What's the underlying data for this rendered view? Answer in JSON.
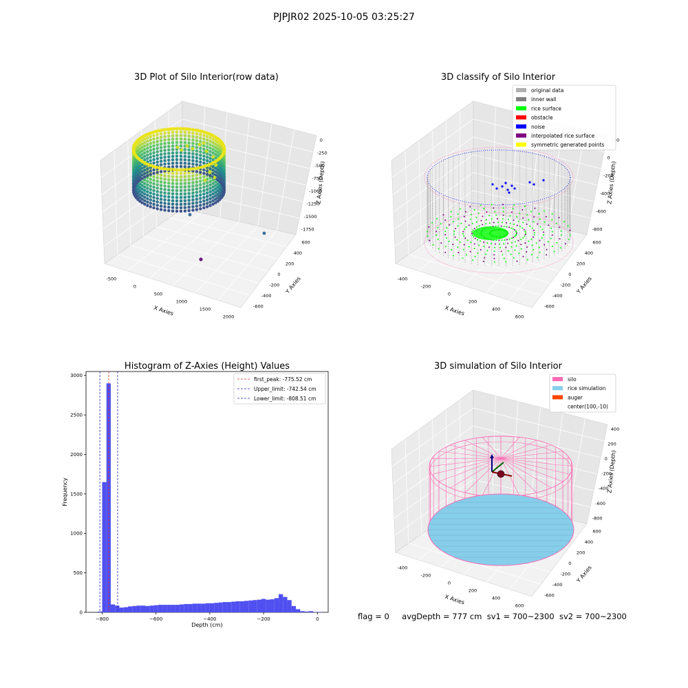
{
  "figure_title": "PJPJR02 2025-10-05 03:25:27",
  "status": {
    "flag": "flag = 0",
    "avg_depth": "avgDepth = 777 cm",
    "sv1": "sv1 = 700~2300",
    "sv2": "sv2 = 700~2300"
  },
  "colors": {
    "hist_bar": "#5050f0",
    "peak_line": "#e03030",
    "limit_line": "#2020c0",
    "original": "#b0b0b0",
    "inner_wall": "#808080",
    "rice_surface": "#00ff00",
    "obstacle": "#ff0000",
    "noise": "#0000ff",
    "interpolated": "#800080",
    "symmetric": "#ffff00",
    "silo": "#ff69b4",
    "rice_sim": "#87ceeb",
    "auger": "#ff4500"
  },
  "chart_data": [
    {
      "type": "scatter",
      "projection": "3d",
      "title": "3D Plot of Silo Interior(row data)",
      "xlabel": "X Axies",
      "ylabel": "Y Axies",
      "zlabel": "Z Axies (Depth)",
      "x_ticks": [
        "-500",
        "0",
        "500",
        "1000",
        "1500",
        "2000"
      ],
      "y_ticks": [
        "-600",
        "-400",
        "-200",
        "0",
        "200",
        "400",
        "600"
      ],
      "z_ticks": [
        "0",
        "-250",
        "-500",
        "-750",
        "-1000",
        "-1250",
        "-1500",
        "-1750"
      ],
      "colormap": "viridis"
    },
    {
      "type": "scatter",
      "projection": "3d",
      "title": "3D classify of Silo Interior",
      "xlabel": "X Axies",
      "ylabel": "Y Axies",
      "zlabel": "Z Axies (Depth)",
      "x_ticks": [
        "-400",
        "-200",
        "0",
        "200",
        "400",
        "600"
      ],
      "y_ticks": [
        "-600",
        "-400",
        "-200",
        "0",
        "200",
        "400",
        "600"
      ],
      "z_ticks": [
        "200",
        "0",
        "-200",
        "-400",
        "-600",
        "-800"
      ],
      "legend_position": "top-right",
      "legend": [
        {
          "label": "original data",
          "color": "#b0b0b0"
        },
        {
          "label": "inner wall",
          "color": "#808080"
        },
        {
          "label": "rice surface",
          "color": "#00ff00"
        },
        {
          "label": "obstacle",
          "color": "#ff0000"
        },
        {
          "label": "noise",
          "color": "#0000ff"
        },
        {
          "label": "interpolated rice surface",
          "color": "#800080"
        },
        {
          "label": "symmetric generated points",
          "color": "#ffff00"
        }
      ]
    },
    {
      "type": "bar",
      "title": "Histogram of Z-Axies (Height) Values",
      "xlabel": "Depth (cm)",
      "ylabel": "Frequency",
      "xlim": [
        -860,
        40
      ],
      "ylim": [
        0,
        3050
      ],
      "x_ticks": [
        -800,
        -600,
        -400,
        -200,
        0
      ],
      "y_ticks": [
        0,
        500,
        1000,
        1500,
        2000,
        2500,
        3000
      ],
      "bin_width": 16,
      "bins_start": [
        -816,
        -800,
        -784,
        -768,
        -752,
        -736,
        -720,
        -704,
        -688,
        -672,
        -656,
        -640,
        -624,
        -608,
        -592,
        -576,
        -560,
        -544,
        -528,
        -512,
        -496,
        -480,
        -464,
        -448,
        -432,
        -416,
        -400,
        -384,
        -368,
        -352,
        -336,
        -320,
        -304,
        -288,
        -272,
        -256,
        -240,
        -224,
        -208,
        -192,
        -176,
        -160,
        -144,
        -128,
        -112,
        -96,
        -80,
        -64,
        -48,
        -32,
        -16,
        0
      ],
      "values": [
        10,
        1650,
        2900,
        100,
        85,
        60,
        65,
        75,
        80,
        85,
        85,
        80,
        85,
        90,
        95,
        95,
        95,
        95,
        95,
        100,
        105,
        105,
        110,
        110,
        110,
        115,
        115,
        120,
        125,
        130,
        130,
        135,
        140,
        140,
        145,
        150,
        155,
        160,
        170,
        160,
        165,
        180,
        230,
        195,
        155,
        80,
        40,
        15,
        10,
        15,
        5,
        3
      ],
      "vlines": [
        {
          "label": "first_peak: -775.52 cm",
          "x": -775.52,
          "color": "#e03030"
        },
        {
          "label": "Upper_limit: -742.54 cm",
          "x": -742.54,
          "color": "#2020c0"
        },
        {
          "label": "Lower_limit: -808.51 cm",
          "x": -808.51,
          "color": "#2020c0"
        }
      ],
      "legend_position": "top-right"
    },
    {
      "type": "scatter",
      "projection": "3d",
      "title": "3D simulation of Silo Interior",
      "xlabel": "X Axies",
      "ylabel": "Y Axies",
      "zlabel": "Z Axies (Depth)",
      "x_ticks": [
        "-400",
        "-200",
        "0",
        "200",
        "400",
        "600"
      ],
      "y_ticks": [
        "-600",
        "-400",
        "-200",
        "0",
        "200",
        "400",
        "600"
      ],
      "z_ticks": [
        "400",
        "200",
        "0",
        "-200",
        "-400",
        "-600",
        "-800"
      ],
      "legend_position": "top-right",
      "legend": [
        {
          "label": "silo",
          "color": "#ff69b4"
        },
        {
          "label": "rice simulation",
          "color": "#87ceeb"
        },
        {
          "label": "auger",
          "color": "#ff4500"
        },
        {
          "label": "center(100,-10)",
          "color": ""
        }
      ]
    }
  ]
}
